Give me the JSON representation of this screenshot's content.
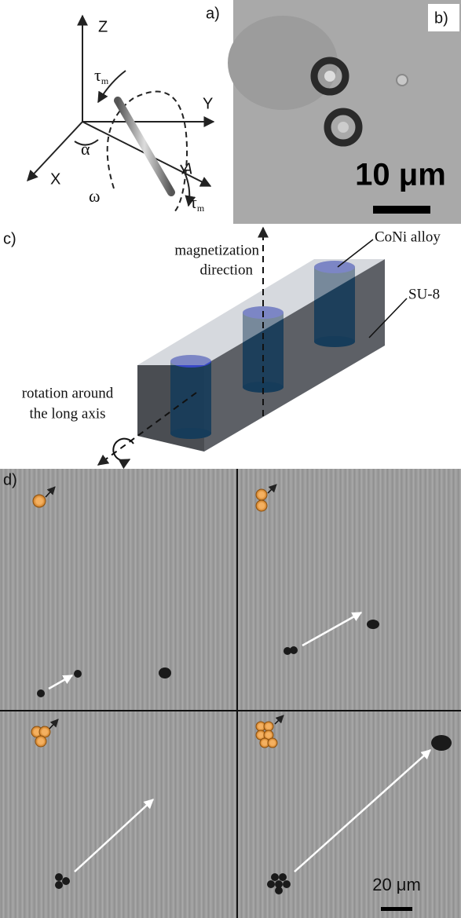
{
  "panel_a": {
    "label": "a)",
    "axis_z": "Z",
    "axis_y": "Y",
    "axis_x": "X",
    "axis_a": "A",
    "angle": "α",
    "rate": "ω",
    "torque": {
      "symbol": "τ",
      "subscript": "m"
    }
  },
  "panel_b": {
    "label": "b)",
    "scale": "10 μm"
  },
  "panel_c": {
    "label": "c)",
    "magnetization": [
      "magnetization",
      "direction"
    ],
    "alloy": "CoNi alloy",
    "matrix": "SU-8",
    "rotation": [
      "rotation around",
      "the long axis"
    ]
  },
  "panel_d": {
    "label": "d)",
    "scale": "20 μm"
  }
}
